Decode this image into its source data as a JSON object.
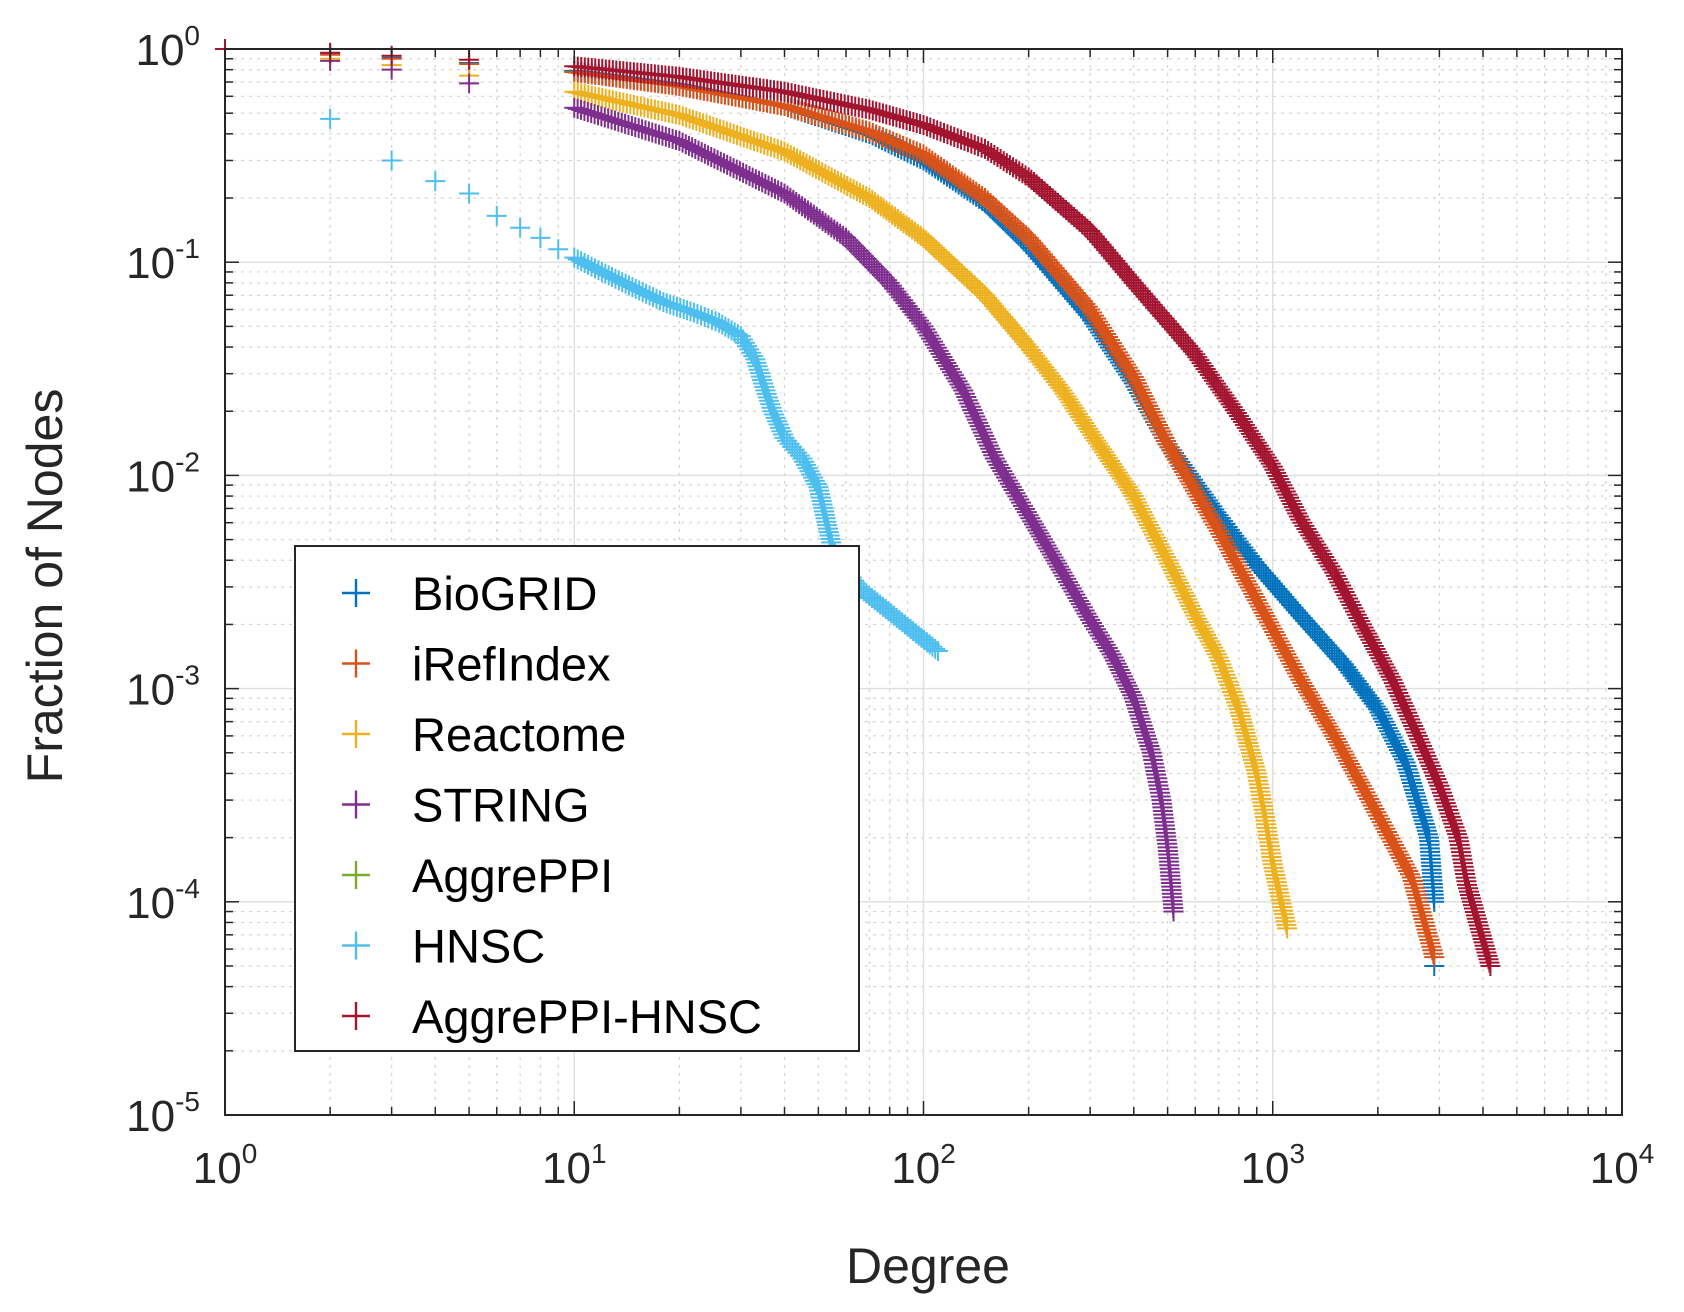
{
  "chart_data": {
    "type": "scatter",
    "title": "",
    "xlabel": "Degree",
    "ylabel": "Fraction of Nodes",
    "xscale": "log",
    "yscale": "log",
    "xlim": [
      1,
      10000
    ],
    "ylim": [
      1e-05,
      1
    ],
    "grid": true,
    "marker": "+",
    "legend_position": "lower-left",
    "x_ticks": [
      {
        "base": "10",
        "exp": "0",
        "value": 1
      },
      {
        "base": "10",
        "exp": "1",
        "value": 10
      },
      {
        "base": "10",
        "exp": "2",
        "value": 100
      },
      {
        "base": "10",
        "exp": "3",
        "value": 1000
      },
      {
        "base": "10",
        "exp": "4",
        "value": 10000
      }
    ],
    "y_ticks": [
      {
        "base": "10",
        "exp": "0",
        "value": 1
      },
      {
        "base": "10",
        "exp": "-1",
        "value": 0.1
      },
      {
        "base": "10",
        "exp": "-2",
        "value": 0.01
      },
      {
        "base": "10",
        "exp": "-3",
        "value": 0.001
      },
      {
        "base": "10",
        "exp": "-4",
        "value": 0.0001
      },
      {
        "base": "10",
        "exp": "-5",
        "value": 1e-05
      }
    ],
    "series": [
      {
        "name": "BioGRID",
        "color": "#0072BD",
        "points": [
          [
            1,
            1
          ],
          [
            2,
            0.95
          ],
          [
            3,
            0.91
          ],
          [
            5,
            0.86
          ],
          [
            10,
            0.79
          ],
          [
            20,
            0.68
          ],
          [
            40,
            0.54
          ],
          [
            70,
            0.4
          ],
          [
            100,
            0.3
          ],
          [
            150,
            0.19
          ],
          [
            200,
            0.12
          ],
          [
            300,
            0.055
          ],
          [
            400,
            0.027
          ],
          [
            500,
            0.014
          ],
          [
            700,
            0.0065
          ],
          [
            900,
            0.0038
          ],
          [
            1200,
            0.0022
          ],
          [
            1600,
            0.0013
          ],
          [
            2000,
            0.0008
          ],
          [
            2400,
            0.00045
          ],
          [
            2800,
            0.0002
          ],
          [
            2900,
            0.0001
          ],
          [
            2900,
            5e-05
          ]
        ]
      },
      {
        "name": "iRefIndex",
        "color": "#D95319",
        "points": [
          [
            1,
            1
          ],
          [
            2,
            0.94
          ],
          [
            3,
            0.9
          ],
          [
            5,
            0.85
          ],
          [
            10,
            0.78
          ],
          [
            20,
            0.67
          ],
          [
            40,
            0.54
          ],
          [
            70,
            0.41
          ],
          [
            100,
            0.32
          ],
          [
            150,
            0.2
          ],
          [
            200,
            0.13
          ],
          [
            300,
            0.06
          ],
          [
            400,
            0.029
          ],
          [
            500,
            0.014
          ],
          [
            700,
            0.0055
          ],
          [
            900,
            0.0026
          ],
          [
            1200,
            0.0011
          ],
          [
            1500,
            0.0006
          ],
          [
            1800,
            0.00035
          ],
          [
            2100,
            0.00022
          ],
          [
            2500,
            0.00013
          ],
          [
            2900,
            5.5e-05
          ]
        ]
      },
      {
        "name": "Reactome",
        "color": "#EDB120",
        "points": [
          [
            1,
            1
          ],
          [
            2,
            0.9
          ],
          [
            3,
            0.84
          ],
          [
            5,
            0.75
          ],
          [
            10,
            0.63
          ],
          [
            20,
            0.49
          ],
          [
            40,
            0.33
          ],
          [
            70,
            0.2
          ],
          [
            100,
            0.13
          ],
          [
            150,
            0.07
          ],
          [
            200,
            0.04
          ],
          [
            250,
            0.025
          ],
          [
            300,
            0.016
          ],
          [
            400,
            0.008
          ],
          [
            500,
            0.004
          ],
          [
            600,
            0.0022
          ],
          [
            700,
            0.0014
          ],
          [
            800,
            0.0008
          ],
          [
            900,
            0.0004
          ],
          [
            950,
            0.00025
          ],
          [
            1000,
            0.00015
          ],
          [
            1100,
            7.5e-05
          ]
        ]
      },
      {
        "name": "STRING",
        "color": "#7E2F8E",
        "points": [
          [
            1,
            1
          ],
          [
            2,
            0.88
          ],
          [
            3,
            0.8
          ],
          [
            5,
            0.69
          ],
          [
            10,
            0.53
          ],
          [
            20,
            0.37
          ],
          [
            40,
            0.21
          ],
          [
            60,
            0.13
          ],
          [
            80,
            0.08
          ],
          [
            100,
            0.05
          ],
          [
            130,
            0.025
          ],
          [
            160,
            0.012
          ],
          [
            200,
            0.0065
          ],
          [
            250,
            0.0035
          ],
          [
            300,
            0.0021
          ],
          [
            350,
            0.0014
          ],
          [
            400,
            0.0009
          ],
          [
            450,
            0.0005
          ],
          [
            480,
            0.0003
          ],
          [
            500,
            0.00018
          ],
          [
            520,
            9e-05
          ]
        ]
      },
      {
        "name": "AggrePPI",
        "color": "#77AC30",
        "points": []
      },
      {
        "name": "HNSC",
        "color": "#4DBEEE",
        "points": [
          [
            2,
            0.47
          ],
          [
            3,
            0.3
          ],
          [
            4,
            0.24
          ],
          [
            5,
            0.21
          ],
          [
            6,
            0.165
          ],
          [
            7,
            0.145
          ],
          [
            8,
            0.13
          ],
          [
            9,
            0.115
          ],
          [
            10,
            0.105
          ],
          [
            12,
            0.09
          ],
          [
            15,
            0.075
          ],
          [
            18,
            0.065
          ],
          [
            22,
            0.058
          ],
          [
            26,
            0.052
          ],
          [
            30,
            0.045
          ],
          [
            33,
            0.035
          ],
          [
            35,
            0.026
          ],
          [
            37,
            0.02
          ],
          [
            40,
            0.015
          ],
          [
            45,
            0.012
          ],
          [
            50,
            0.0088
          ],
          [
            55,
            0.0045
          ],
          [
            65,
            0.003
          ],
          [
            110,
            0.0015
          ]
        ]
      },
      {
        "name": "AggrePPI-HNSC",
        "color": "#A2142F",
        "points": [
          [
            1,
            1
          ],
          [
            2,
            0.96
          ],
          [
            3,
            0.93
          ],
          [
            5,
            0.89
          ],
          [
            10,
            0.83
          ],
          [
            20,
            0.74
          ],
          [
            40,
            0.63
          ],
          [
            70,
            0.52
          ],
          [
            100,
            0.44
          ],
          [
            150,
            0.34
          ],
          [
            200,
            0.25
          ],
          [
            300,
            0.14
          ],
          [
            400,
            0.08
          ],
          [
            600,
            0.037
          ],
          [
            800,
            0.019
          ],
          [
            1000,
            0.011
          ],
          [
            1200,
            0.0062
          ],
          [
            1500,
            0.0035
          ],
          [
            1800,
            0.002
          ],
          [
            2200,
            0.0011
          ],
          [
            2600,
            0.0006
          ],
          [
            3000,
            0.00035
          ],
          [
            3400,
            0.0002
          ],
          [
            3600,
            0.00012
          ],
          [
            4200,
            5e-05
          ]
        ]
      }
    ]
  }
}
